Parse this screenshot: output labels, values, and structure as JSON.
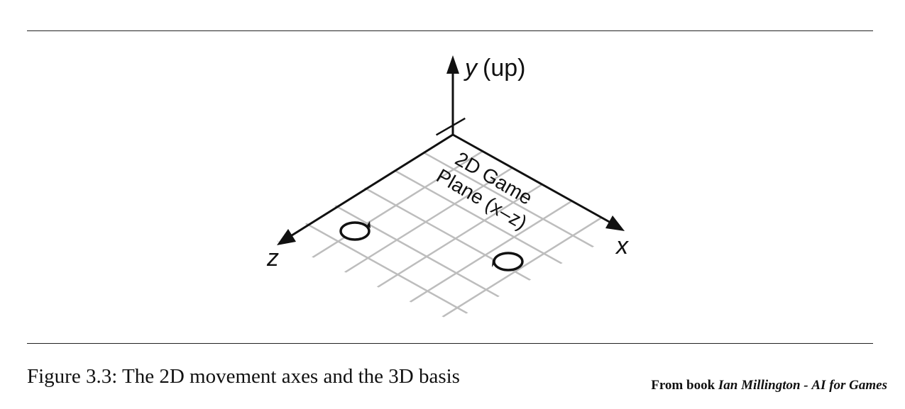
{
  "figure": {
    "axis_y_var": "y",
    "axis_y_suffix": "(up)",
    "axis_x_label": "x",
    "axis_z_label": "z",
    "plane_label_line1": "2D Game",
    "plane_label_line2": "Plane (x–z)"
  },
  "caption": {
    "text": "Figure 3.3: The 2D movement axes and the 3D basis"
  },
  "source": {
    "prefix": "From book",
    "author": "Ian Millington",
    "separator": "-",
    "title": "AI for Games"
  },
  "colors": {
    "grid": "#bdbdbd",
    "axes": "#111111",
    "rules": "#222222"
  }
}
